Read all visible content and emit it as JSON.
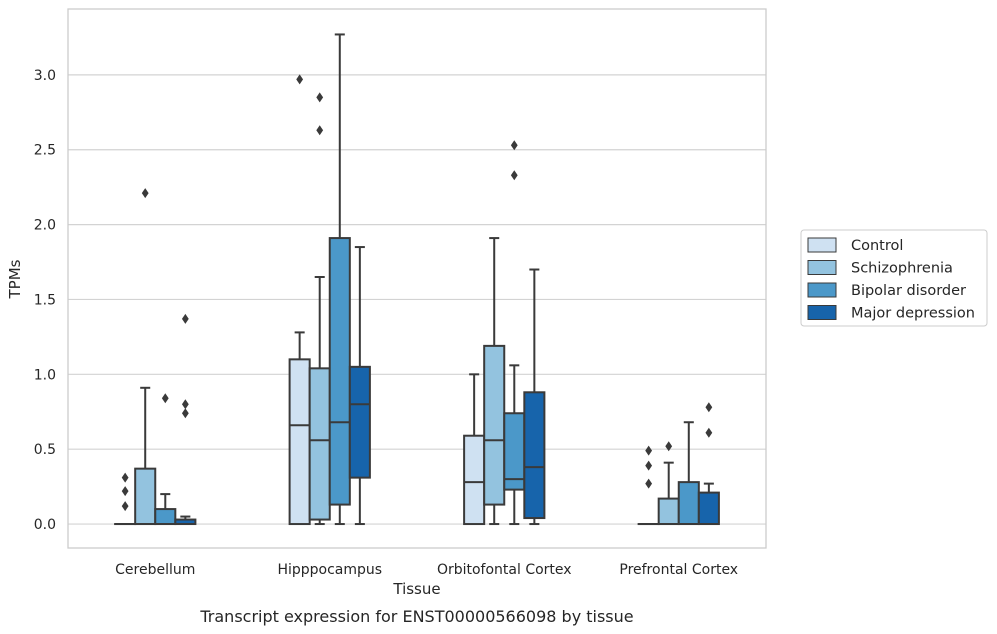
{
  "caption": "Transcript expression for ENST00000566098 by tissue",
  "chart_data": {
    "type": "box",
    "xlabel": "Tissue",
    "ylabel": "TPMs",
    "ylim": [
      -0.16,
      3.44
    ],
    "yticks": [
      "0.0",
      "0.5",
      "1.0",
      "1.5",
      "2.0",
      "2.5",
      "3.0"
    ],
    "grid": true,
    "legend_position": "right",
    "categories": [
      "Cerebellum",
      "Hipppocampus",
      "Orbitofontal Cortex",
      "Prefrontal Cortex"
    ],
    "series": [
      {
        "name": "Control",
        "color": "#cfe1f2",
        "boxes": [
          {
            "whislo": 0,
            "q1": 0,
            "med": 0,
            "q3": 0,
            "whishi": 0,
            "fliers": [
              0.12,
              0.22,
              0.31
            ]
          },
          {
            "whislo": 0,
            "q1": 0,
            "med": 0.66,
            "q3": 1.1,
            "whishi": 1.28,
            "fliers": [
              2.97
            ]
          },
          {
            "whislo": 0,
            "q1": 0,
            "med": 0.28,
            "q3": 0.59,
            "whishi": 1.0,
            "fliers": []
          },
          {
            "whislo": 0,
            "q1": 0,
            "med": 0,
            "q3": 0,
            "whishi": 0,
            "fliers": [
              0.27,
              0.39,
              0.49
            ]
          }
        ]
      },
      {
        "name": "Schizophrenia",
        "color": "#93c3df",
        "boxes": [
          {
            "whislo": 0,
            "q1": 0,
            "med": 0,
            "q3": 0.37,
            "whishi": 0.91,
            "fliers": [
              2.21
            ]
          },
          {
            "whislo": 0,
            "q1": 0.03,
            "med": 0.56,
            "q3": 1.04,
            "whishi": 1.65,
            "fliers": [
              2.63,
              2.85
            ]
          },
          {
            "whislo": 0,
            "q1": 0.13,
            "med": 0.56,
            "q3": 1.19,
            "whishi": 1.91,
            "fliers": []
          },
          {
            "whislo": 0,
            "q1": 0,
            "med": 0,
            "q3": 0.17,
            "whishi": 0.41,
            "fliers": [
              0.52
            ]
          }
        ]
      },
      {
        "name": "Bipolar disorder",
        "color": "#4b98c9",
        "boxes": [
          {
            "whislo": 0,
            "q1": 0,
            "med": 0,
            "q3": 0.1,
            "whishi": 0.2,
            "fliers": [
              0.84
            ]
          },
          {
            "whislo": 0,
            "q1": 0.13,
            "med": 0.68,
            "q3": 1.91,
            "whishi": 3.27,
            "fliers": []
          },
          {
            "whislo": 0,
            "q1": 0.23,
            "med": 0.3,
            "q3": 0.74,
            "whishi": 1.06,
            "fliers": [
              2.33,
              2.53
            ]
          },
          {
            "whislo": 0,
            "q1": 0,
            "med": 0,
            "q3": 0.28,
            "whishi": 0.68,
            "fliers": []
          }
        ]
      },
      {
        "name": "Major depression",
        "color": "#1764ab",
        "boxes": [
          {
            "whislo": 0,
            "q1": 0,
            "med": 0,
            "q3": 0.03,
            "whishi": 0.05,
            "fliers": [
              0.74,
              0.8,
              1.37
            ]
          },
          {
            "whislo": 0,
            "q1": 0.31,
            "med": 0.8,
            "q3": 1.05,
            "whishi": 1.85,
            "fliers": []
          },
          {
            "whislo": 0,
            "q1": 0.04,
            "med": 0.38,
            "q3": 0.88,
            "whishi": 1.7,
            "fliers": []
          },
          {
            "whislo": 0,
            "q1": 0,
            "med": 0,
            "q3": 0.21,
            "whishi": 0.27,
            "fliers": [
              0.61,
              0.78
            ]
          }
        ]
      }
    ]
  }
}
